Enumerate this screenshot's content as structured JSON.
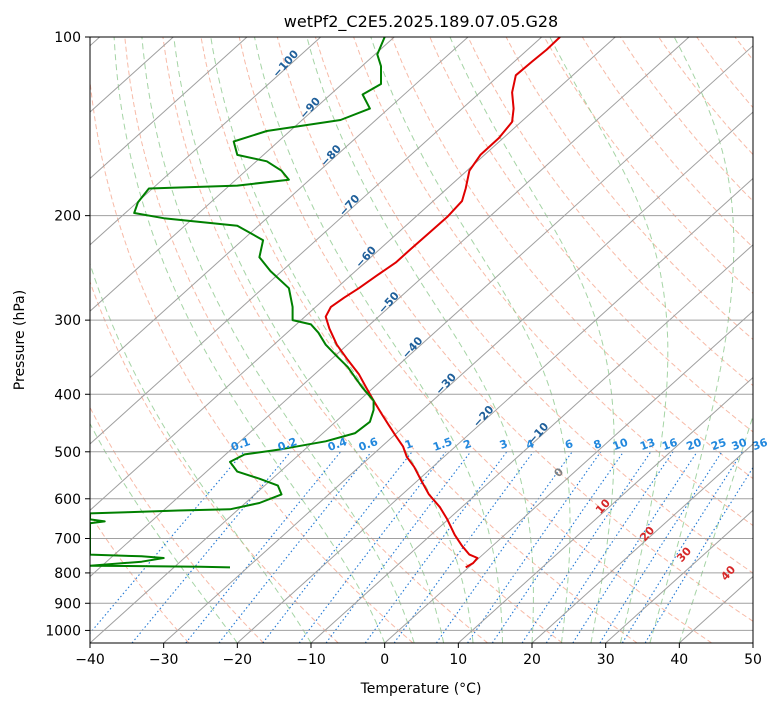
{
  "chart_data": {
    "type": "line",
    "title": "wetPf2_C2E5.2025.189.07.05.G28",
    "xlabel": "Temperature (°C)",
    "ylabel": "Pressure (hPa)",
    "xlim": [
      -40,
      50
    ],
    "ylim": [
      1050,
      100
    ],
    "y_scale": "log",
    "grid": true,
    "x_ticks": [
      "−40",
      "−30",
      "−20",
      "−10",
      "0",
      "10",
      "20",
      "30",
      "40",
      "50"
    ],
    "y_ticks": [
      "100",
      "200",
      "300",
      "400",
      "500",
      "600",
      "700",
      "800",
      "900",
      "1000"
    ],
    "colors": {
      "temperature": "#e00000",
      "dewpoint": "#008000",
      "isotherm": "#a0a0a0",
      "dry_adiabat": "#f4a38a",
      "moist_adiabat": "#8fc98f",
      "mixing_ratio": "#1f77d4",
      "isotherm_label": "#1f5f9a",
      "moist_label": "#d62728"
    },
    "series": [
      {
        "color": "temperature",
        "points": [
          [
            11,
            783
          ],
          [
            12,
            770
          ],
          [
            12.6,
            755
          ],
          [
            11.5,
            745
          ],
          [
            10.5,
            720
          ],
          [
            9.5,
            690
          ],
          [
            8.5,
            650
          ],
          [
            7.5,
            620
          ],
          [
            6,
            590
          ],
          [
            5,
            560
          ],
          [
            4,
            530
          ],
          [
            3,
            510
          ],
          [
            2.5,
            490
          ],
          [
            1.5,
            470
          ],
          [
            0.5,
            450
          ],
          [
            -0.5,
            430
          ],
          [
            -1.5,
            410
          ],
          [
            -2.5,
            390
          ],
          [
            -3.5,
            370
          ],
          [
            -5,
            350
          ],
          [
            -6.5,
            330
          ],
          [
            -7.5,
            310
          ],
          [
            -8,
            296
          ],
          [
            -7.3,
            285
          ],
          [
            -5.5,
            275
          ],
          [
            -3.5,
            265
          ],
          [
            -1,
            252
          ],
          [
            1.5,
            240
          ],
          [
            3.5,
            228
          ],
          [
            6,
            214
          ],
          [
            8.5,
            201
          ],
          [
            10.5,
            189
          ],
          [
            11,
            180
          ],
          [
            11.5,
            168
          ],
          [
            13,
            158
          ],
          [
            15.5,
            148
          ],
          [
            17.3,
            139
          ],
          [
            17.5,
            132
          ],
          [
            17.3,
            124
          ],
          [
            17.8,
            116
          ],
          [
            20,
            110
          ],
          [
            22,
            105
          ],
          [
            23.8,
            100
          ]
        ]
      },
      {
        "color": "dewpoint",
        "points": [
          [
            -21,
            783
          ],
          [
            -25,
            781
          ],
          [
            -30,
            780
          ],
          [
            -40,
            778
          ],
          [
            -33,
            766
          ],
          [
            -30,
            755
          ],
          [
            -33,
            750
          ],
          [
            -40,
            745
          ],
          [
            -40,
            660
          ],
          [
            -38,
            655
          ],
          [
            -40,
            650
          ],
          [
            -40,
            635
          ],
          [
            -35,
            632
          ],
          [
            -28,
            628
          ],
          [
            -21,
            625
          ],
          [
            -17,
            610
          ],
          [
            -14,
            590
          ],
          [
            -14.5,
            570
          ],
          [
            -17,
            555
          ],
          [
            -20,
            540
          ],
          [
            -21,
            520
          ],
          [
            -19,
            505
          ],
          [
            -14,
            495
          ],
          [
            -8,
            480
          ],
          [
            -4,
            465
          ],
          [
            -2,
            445
          ],
          [
            -1.5,
            425
          ],
          [
            -1.5,
            410
          ],
          [
            -3,
            390
          ],
          [
            -4,
            375
          ],
          [
            -5,
            360
          ],
          [
            -6.5,
            345
          ],
          [
            -8,
            330
          ],
          [
            -9,
            315
          ],
          [
            -10,
            305
          ],
          [
            -12.5,
            300
          ],
          [
            -12.5,
            285
          ],
          [
            -13,
            265
          ],
          [
            -15.5,
            248
          ],
          [
            -17,
            235
          ],
          [
            -16.5,
            220
          ],
          [
            -20,
            208
          ],
          [
            -30,
            202
          ],
          [
            -34,
            198
          ],
          [
            -33.5,
            190
          ],
          [
            -32,
            180
          ],
          [
            -20,
            178
          ],
          [
            -13,
            174
          ],
          [
            -14,
            168
          ],
          [
            -16,
            162
          ],
          [
            -20,
            158
          ],
          [
            -20.5,
            150
          ],
          [
            -16,
            144
          ],
          [
            -6,
            138
          ],
          [
            -2,
            132
          ],
          [
            -3,
            125
          ],
          [
            -0.5,
            120
          ],
          [
            -0.5,
            112
          ],
          [
            -1,
            107
          ],
          [
            0,
            100
          ]
        ]
      }
    ],
    "isotherm_labels": [
      "−100",
      "−90",
      "−80",
      "−70",
      "−60",
      "−50",
      "−40",
      "−30",
      "−20",
      "−10"
    ],
    "mixing_ratio_labels": [
      "0.1",
      "0.2",
      "0.4",
      "0.6",
      "1",
      "1.5",
      "2",
      "3",
      "4",
      "6",
      "8",
      "10",
      "13",
      "16",
      "20",
      "25",
      "30",
      "36"
    ],
    "moist_labels": [
      "0",
      "10",
      "20",
      "30",
      "40"
    ]
  }
}
